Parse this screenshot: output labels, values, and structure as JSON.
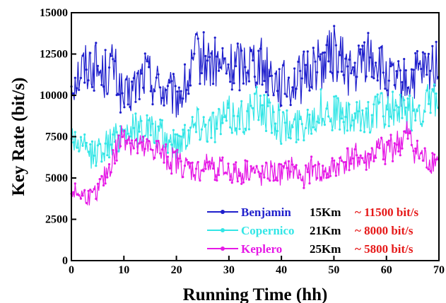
{
  "chart_data": {
    "type": "line",
    "xlabel": "Running Time (hh)",
    "ylabel": "Key Rate (bit/s)",
    "xlim": [
      0,
      70
    ],
    "ylim": [
      0,
      15000
    ],
    "xticks": [
      0,
      10,
      20,
      30,
      40,
      50,
      60,
      70
    ],
    "yticks": [
      0,
      2500,
      5000,
      7500,
      10000,
      12500,
      15000
    ],
    "grid": false,
    "legend_position": "bottom-right",
    "series": [
      {
        "name": "Benjamin",
        "distance": "15Km",
        "rate_note": "~ 11500 bit/s",
        "color": "#1f1fcc",
        "x": [
          0,
          2,
          4,
          6,
          8,
          10,
          12,
          14,
          16,
          18,
          20,
          22,
          24,
          26,
          28,
          30,
          32,
          34,
          36,
          38,
          40,
          42,
          44,
          46,
          48,
          50,
          52,
          54,
          56,
          58,
          60,
          62,
          64,
          66,
          68,
          70
        ],
        "values": [
          10800,
          11600,
          12000,
          11200,
          11800,
          9600,
          10400,
          11400,
          10800,
          10200,
          9800,
          10600,
          12400,
          12000,
          11800,
          11600,
          11900,
          12200,
          12000,
          11400,
          10600,
          10800,
          11000,
          11800,
          12000,
          12600,
          11800,
          11200,
          12400,
          12200,
          11000,
          10600,
          10800,
          11200,
          11400,
          12400
        ]
      },
      {
        "name": "Copernico",
        "distance": "21Km",
        "rate_note": "~ 8000 bit/s",
        "color": "#33e6e6",
        "x": [
          0,
          2,
          4,
          6,
          8,
          10,
          12,
          14,
          16,
          18,
          20,
          22,
          24,
          26,
          28,
          30,
          32,
          34,
          36,
          38,
          40,
          42,
          44,
          46,
          48,
          50,
          52,
          54,
          56,
          58,
          60,
          62,
          64,
          66,
          68,
          70
        ],
        "values": [
          7600,
          6800,
          6400,
          6900,
          7200,
          8000,
          7900,
          8200,
          7600,
          7400,
          7000,
          7800,
          8400,
          8200,
          8400,
          8800,
          8600,
          9000,
          9400,
          8800,
          8200,
          8000,
          8400,
          8800,
          9200,
          9000,
          8600,
          8400,
          8800,
          9000,
          9200,
          9000,
          8800,
          9200,
          9400,
          9800
        ]
      },
      {
        "name": "Keplero",
        "distance": "25Km",
        "rate_note": "~ 5800 bit/s",
        "color": "#e619e6",
        "x": [
          0,
          2,
          4,
          6,
          8,
          10,
          12,
          14,
          16,
          18,
          20,
          22,
          24,
          26,
          28,
          30,
          32,
          34,
          36,
          38,
          40,
          42,
          44,
          46,
          48,
          50,
          52,
          54,
          56,
          58,
          60,
          62,
          64,
          66,
          68,
          70
        ],
        "values": [
          4200,
          4000,
          3800,
          4800,
          6200,
          7800,
          7000,
          6600,
          6800,
          6200,
          6000,
          5600,
          5400,
          5800,
          5600,
          5400,
          5200,
          5600,
          5000,
          5400,
          5200,
          5600,
          5000,
          5600,
          5200,
          5600,
          6000,
          6400,
          6000,
          6600,
          6800,
          7000,
          7600,
          6400,
          6000,
          6200
        ]
      }
    ]
  }
}
